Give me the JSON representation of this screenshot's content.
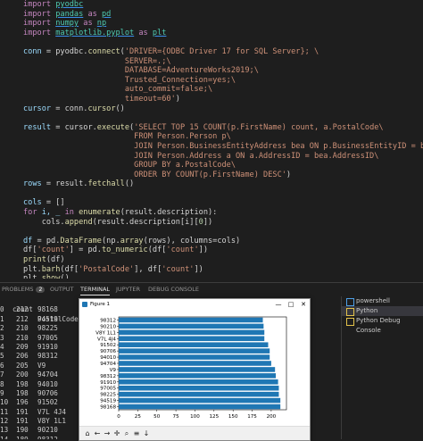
{
  "code": {
    "lines": [
      [
        {
          "t": "import ",
          "c": "kw"
        },
        {
          "t": "pyodbc",
          "c": "mod"
        }
      ],
      [
        {
          "t": "import ",
          "c": "kw"
        },
        {
          "t": "pandas",
          "c": "mod"
        },
        {
          "t": " as ",
          "c": "kw"
        },
        {
          "t": "pd",
          "c": "mod"
        }
      ],
      [
        {
          "t": "import ",
          "c": "kw"
        },
        {
          "t": "numpy",
          "c": "mod"
        },
        {
          "t": " as ",
          "c": "kw"
        },
        {
          "t": "np",
          "c": "mod"
        }
      ],
      [
        {
          "t": "import ",
          "c": "kw"
        },
        {
          "t": "matplotlib.pyplot",
          "c": "mod"
        },
        {
          "t": " as ",
          "c": "kw"
        },
        {
          "t": "plt",
          "c": "mod"
        }
      ],
      [],
      [
        {
          "t": "conn",
          "c": "vr"
        },
        {
          "t": " = pyodbc.",
          "c": ""
        },
        {
          "t": "connect",
          "c": "fn"
        },
        {
          "t": "(",
          "c": ""
        },
        {
          "t": "'DRIVER={ODBC Driver 17 for SQL Server}; \\",
          "c": "st"
        }
      ],
      [
        {
          "t": "                      SERVER=.;\\",
          "c": "st"
        }
      ],
      [
        {
          "t": "                      DATABASE=AdventureWorks2019;\\",
          "c": "st"
        }
      ],
      [
        {
          "t": "                      Trusted_Connection=yes;\\",
          "c": "st"
        }
      ],
      [
        {
          "t": "                      auto_commit=false;\\",
          "c": "st"
        }
      ],
      [
        {
          "t": "                      timeout=60'",
          "c": "st"
        },
        {
          "t": ")",
          "c": ""
        }
      ],
      [
        {
          "t": "cursor",
          "c": "vr"
        },
        {
          "t": " = conn.",
          "c": ""
        },
        {
          "t": "cursor",
          "c": "fn"
        },
        {
          "t": "()",
          "c": ""
        }
      ],
      [],
      [
        {
          "t": "result",
          "c": "vr"
        },
        {
          "t": " = cursor.",
          "c": ""
        },
        {
          "t": "execute",
          "c": "fn"
        },
        {
          "t": "(",
          "c": ""
        },
        {
          "t": "'SELECT TOP 15 COUNT(p.FirstName) count, a.PostalCode\\",
          "c": "st"
        }
      ],
      [
        {
          "t": "                        FROM Person.Person p\\",
          "c": "st"
        }
      ],
      [
        {
          "t": "                        JOIN Person.BusinessEntityAddress bea ON p.BusinessEntityID = bea.BusinessEntityID\\",
          "c": "st"
        }
      ],
      [
        {
          "t": "                        JOIN Person.Address a ON a.AddressID = bea.AddressID\\",
          "c": "st"
        }
      ],
      [
        {
          "t": "                        GROUP BY a.PostalCode\\",
          "c": "st"
        }
      ],
      [
        {
          "t": "                        ORDER BY COUNT(p.FirstName) DESC'",
          "c": "st"
        },
        {
          "t": ")",
          "c": ""
        }
      ],
      [
        {
          "t": "rows",
          "c": "vr"
        },
        {
          "t": " = result.",
          "c": ""
        },
        {
          "t": "fetchall",
          "c": "fn"
        },
        {
          "t": "()",
          "c": ""
        }
      ],
      [],
      [
        {
          "t": "cols",
          "c": "vr"
        },
        {
          "t": " = []",
          "c": ""
        }
      ],
      [
        {
          "t": "for ",
          "c": "kw"
        },
        {
          "t": "i, _ ",
          "c": "vr"
        },
        {
          "t": "in ",
          "c": "kw"
        },
        {
          "t": "enumerate",
          "c": "fn"
        },
        {
          "t": "(result.description):",
          "c": ""
        }
      ],
      [
        {
          "t": "    cols.",
          "c": ""
        },
        {
          "t": "append",
          "c": "fn"
        },
        {
          "t": "(result.description[i][",
          "c": ""
        },
        {
          "t": "0",
          "c": "nm"
        },
        {
          "t": "])",
          "c": ""
        }
      ],
      [],
      [
        {
          "t": "df",
          "c": "vr"
        },
        {
          "t": " = pd.",
          "c": ""
        },
        {
          "t": "DataFrame",
          "c": "fn"
        },
        {
          "t": "(np.",
          "c": ""
        },
        {
          "t": "array",
          "c": "fn"
        },
        {
          "t": "(rows), columns=cols)",
          "c": ""
        }
      ],
      [
        {
          "t": "df[",
          "c": ""
        },
        {
          "t": "'count'",
          "c": "st"
        },
        {
          "t": "] = pd.",
          "c": ""
        },
        {
          "t": "to_numeric",
          "c": "fn"
        },
        {
          "t": "(df[",
          "c": ""
        },
        {
          "t": "'count'",
          "c": "st"
        },
        {
          "t": "])",
          "c": ""
        }
      ],
      [
        {
          "t": "print",
          "c": "fn"
        },
        {
          "t": "(df)",
          "c": ""
        }
      ],
      [
        {
          "t": "plt.",
          "c": ""
        },
        {
          "t": "barh",
          "c": "fn"
        },
        {
          "t": "(df[",
          "c": ""
        },
        {
          "t": "'PostalCode'",
          "c": "st"
        },
        {
          "t": "], df[",
          "c": ""
        },
        {
          "t": "'count'",
          "c": "st"
        },
        {
          "t": "])",
          "c": ""
        }
      ],
      [
        {
          "t": "plt.",
          "c": ""
        },
        {
          "t": "show",
          "c": "fn"
        },
        {
          "t": "()",
          "c": ""
        }
      ]
    ]
  },
  "panel": {
    "tabs": [
      "PROBLEMS",
      "OUTPUT",
      "TERMINAL",
      "JUPYTER",
      "DEBUG CONSOLE"
    ],
    "problems_count": "2",
    "active_tab": "TERMINAL"
  },
  "terminal": {
    "header": [
      "count",
      "PostalCode"
    ],
    "rows": [
      [
        "0",
        "212",
        "98168"
      ],
      [
        "1",
        "212",
        "94519"
      ],
      [
        "2",
        "210",
        "98225"
      ],
      [
        "3",
        "210",
        "97005"
      ],
      [
        "4",
        "209",
        "91910"
      ],
      [
        "5",
        "206",
        "98312"
      ],
      [
        "6",
        "205",
        "V9"
      ],
      [
        "7",
        "200",
        "94704"
      ],
      [
        "8",
        "198",
        "94010"
      ],
      [
        "9",
        "198",
        "90706"
      ],
      [
        "10",
        "196",
        "91502"
      ],
      [
        "11",
        "191",
        "V7L 4J4"
      ],
      [
        "12",
        "191",
        "V8Y 1L1"
      ],
      [
        "13",
        "190",
        "90210"
      ],
      [
        "14",
        "189",
        "98312"
      ]
    ]
  },
  "terminals_list": {
    "items": [
      "powershell",
      "Python",
      "Python Debug Console"
    ],
    "selected": 1
  },
  "figure": {
    "window_title": "Figure 1",
    "controls": [
      "—",
      "□",
      "✕"
    ],
    "toolbar": [
      "home-icon",
      "back-icon",
      "forward-icon",
      "pan-icon",
      "zoom-icon",
      "configure-icon",
      "save-icon"
    ],
    "toolbar_glyphs": [
      "⌂",
      "←",
      "→",
      "✛",
      "⌕",
      "≡",
      "↓"
    ]
  },
  "chart_data": {
    "type": "bar",
    "orientation": "horizontal",
    "categories": [
      "98312",
      "90210",
      "V8Y 1L1",
      "V7L 4J4",
      "91502",
      "90706",
      "94010",
      "94704",
      "V9",
      "98312",
      "91910",
      "97005",
      "98225",
      "94519",
      "98168"
    ],
    "values": [
      189,
      190,
      191,
      191,
      196,
      198,
      198,
      200,
      205,
      206,
      209,
      210,
      210,
      212,
      212
    ],
    "xlim": [
      0,
      220
    ],
    "xticks": [
      0,
      25,
      50,
      75,
      100,
      125,
      150,
      175,
      200
    ],
    "bar_color": "#1f77b4",
    "grid": false
  }
}
